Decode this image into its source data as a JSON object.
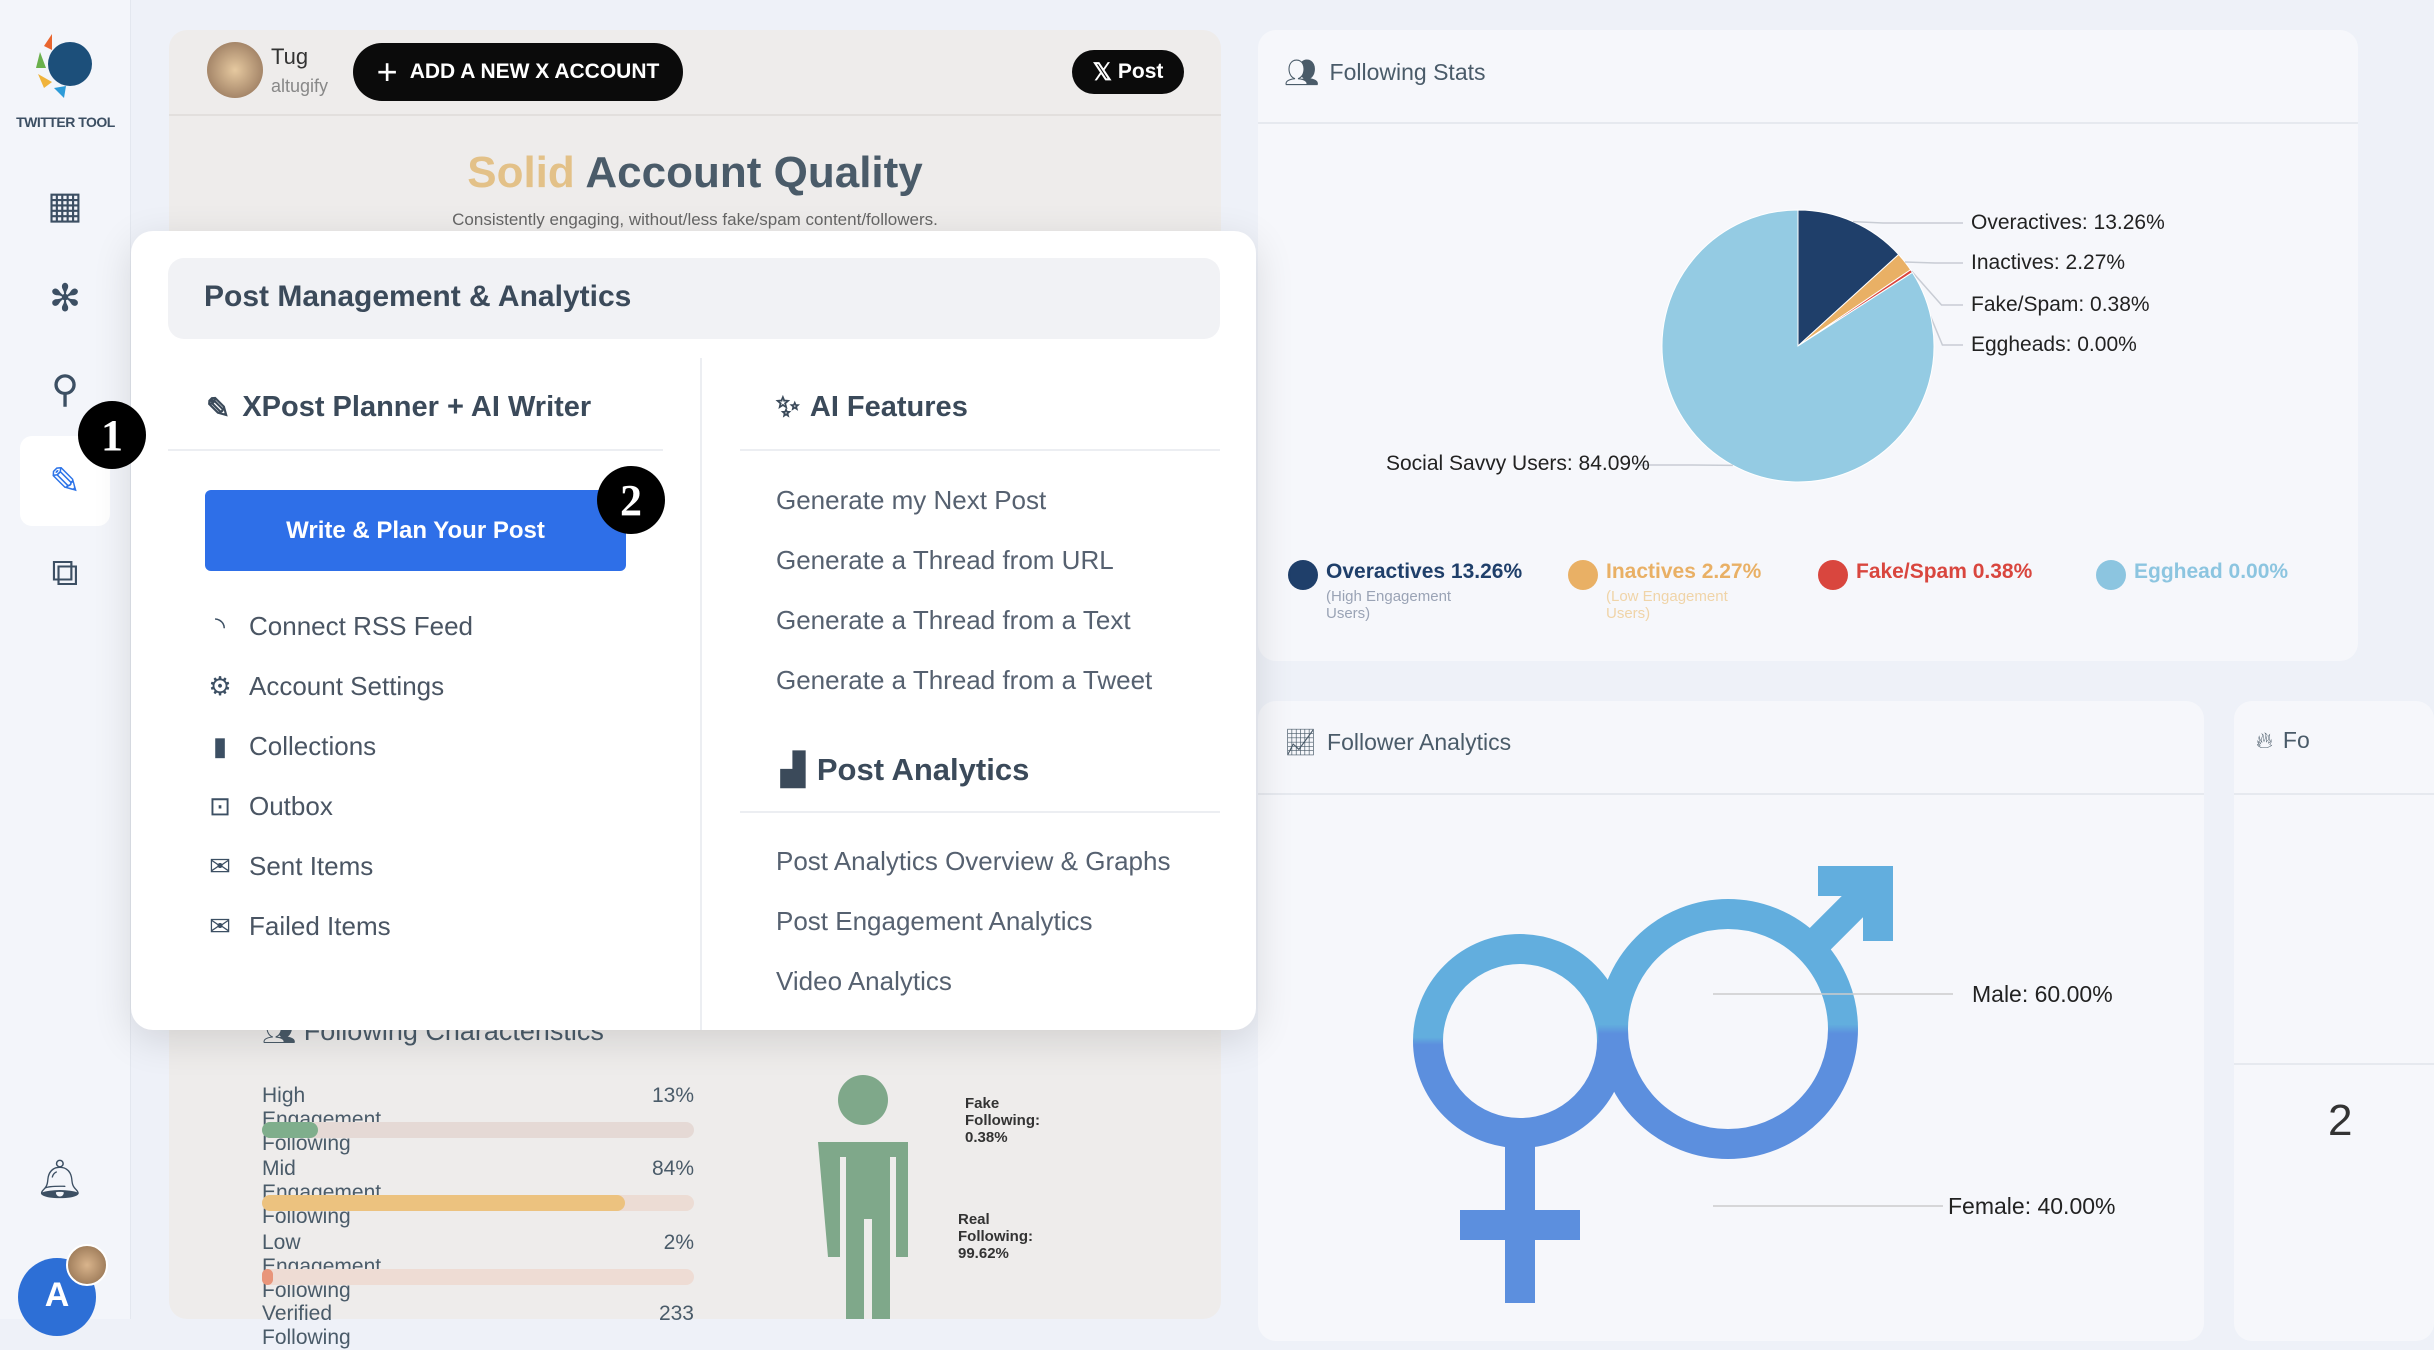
{
  "sidebar": {
    "logo_text": "TWITTER TOOL",
    "avatar_letter": "A",
    "icons": [
      "dashboard-icon",
      "network-icon",
      "search-icon",
      "pen-icon",
      "copy-icon",
      "bell-icon"
    ]
  },
  "header": {
    "user_name": "Tug",
    "user_handle": "altugify",
    "add_account_label": "ADD A NEW X ACCOUNT",
    "post_label": "Post",
    "quality_word": "Solid",
    "quality_title": "Account Quality",
    "quality_subtitle": "Consistently engaging, without/less fake/spam content/followers.",
    "quality_color": "#e3c188"
  },
  "popup": {
    "title": "Post Management & Analytics",
    "left_title": "XPost Planner + AI Writer",
    "primary_button": "Write & Plan Your Post",
    "left_items": [
      {
        "label": "Connect RSS Feed",
        "icon": "rss-icon"
      },
      {
        "label": "Account Settings",
        "icon": "gear-icon"
      },
      {
        "label": "Collections",
        "icon": "bookmark-icon"
      },
      {
        "label": "Outbox",
        "icon": "outbox-icon"
      },
      {
        "label": "Sent Items",
        "icon": "sent-mail-icon"
      },
      {
        "label": "Failed Items",
        "icon": "failed-mail-icon"
      }
    ],
    "ai_title": "AI Features",
    "ai_items": [
      "Generate my Next Post",
      "Generate a Thread from URL",
      "Generate a Thread from a Text",
      "Generate a Thread from a Tweet"
    ],
    "analytics_title": "Post Analytics",
    "analytics_items": [
      "Post Analytics Overview & Graphs",
      "Post Engagement Analytics",
      "Video Analytics"
    ],
    "badge1": "1",
    "badge2": "2"
  },
  "following_chars": {
    "title": "Following Characteristics",
    "rows": [
      {
        "label": "High Engagement Following",
        "value": "13%",
        "pct": 13,
        "color": "#7fae8c"
      },
      {
        "label": "Mid Engagement Following",
        "value": "84%",
        "pct": 84,
        "color": "#ecc27f"
      },
      {
        "label": "Low Engagement Following",
        "value": "2%",
        "pct": 2,
        "color": "#e8957a"
      }
    ],
    "verified_label": "Verified Following",
    "verified_value": "233",
    "fake_label": "Fake Following: 0.38%",
    "real_label": "Real Following: 99.62%"
  },
  "following_stats": {
    "title": "Following Stats",
    "chart_data": {
      "type": "pie",
      "slices": [
        {
          "name": "Overactives",
          "value": 13.26,
          "label": "Overactives: 13.26%",
          "color": "#1f3f6a"
        },
        {
          "name": "Inactives",
          "value": 2.27,
          "label": "Inactives: 2.27%",
          "color": "#e9b065"
        },
        {
          "name": "Fake/Spam",
          "value": 0.38,
          "label": "Fake/Spam: 0.38%",
          "color": "#d9463e"
        },
        {
          "name": "Eggheads",
          "value": 0.0,
          "label": "Eggheads: 0.00%",
          "color": "#9ed0e6"
        },
        {
          "name": "Social Savvy Users",
          "value": 84.09,
          "label": "Social Savvy Users: 84.09%",
          "color": "#94cbe3"
        }
      ]
    },
    "legend": [
      {
        "label": "Overactives 13.26%",
        "sub": "(High Engagement Users)",
        "color": "#1f3f6a",
        "icon": "head-gear-icon"
      },
      {
        "label": "Inactives 2.27%",
        "sub": "(Low Engagement Users)",
        "color": "#e9b065",
        "icon": "sad-face-icon"
      },
      {
        "label": "Fake/Spam 0.38%",
        "sub": "",
        "color": "#d9463e",
        "icon": "dead-face-icon"
      },
      {
        "label": "Egghead 0.00%",
        "sub": "",
        "color": "#8cc5e0",
        "icon": "egg-icon"
      }
    ]
  },
  "follower_analytics": {
    "title": "Follower Analytics",
    "male_label": "Male: 60.00%",
    "female_label": "Female: 40.00%",
    "male": 60,
    "female": 40
  },
  "third_card": {
    "title": "Fo",
    "value": "2"
  }
}
